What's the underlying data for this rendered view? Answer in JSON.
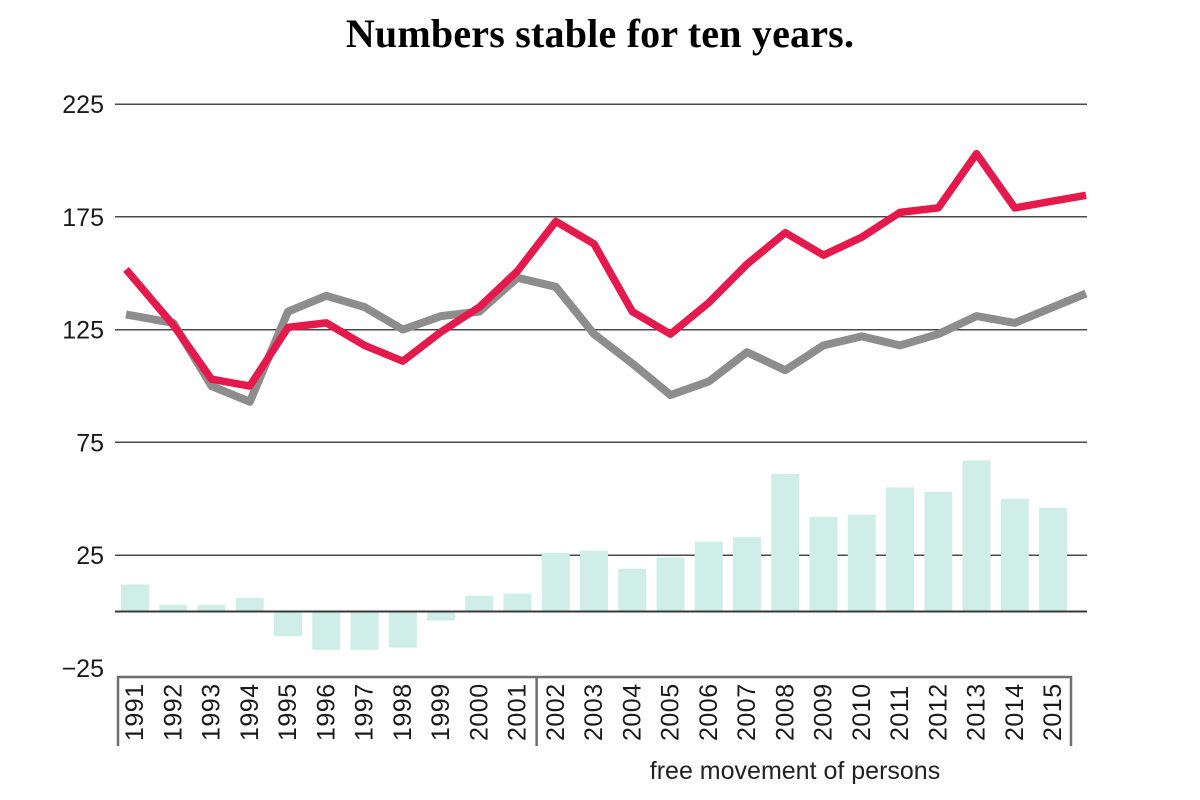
{
  "title": "Numbers stable for ten years.",
  "chart_data": {
    "type": "combo",
    "title": "Numbers stable for ten years.",
    "x": [
      1991,
      1992,
      1993,
      1994,
      1995,
      1996,
      1997,
      1998,
      1999,
      2000,
      2001,
      2002,
      2003,
      2004,
      2005,
      2006,
      2007,
      2008,
      2009,
      2010,
      2011,
      2012,
      2013,
      2014,
      2015
    ],
    "series": [
      {
        "name": "red-line",
        "type": "line",
        "color": "#e6194c",
        "values": [
          147,
          127,
          103,
          100,
          126,
          128,
          118,
          111,
          124,
          135,
          151,
          173,
          163,
          133,
          123,
          137,
          154,
          168,
          158,
          166,
          177,
          179,
          203,
          179,
          182
        ]
      },
      {
        "name": "gray-line",
        "type": "line",
        "color": "#8d8d8d",
        "values": [
          131,
          128,
          100,
          93,
          133,
          140,
          135,
          125,
          131,
          133,
          148,
          144,
          123,
          110,
          96,
          102,
          115,
          107,
          118,
          122,
          118,
          123,
          131,
          128,
          135
        ]
      },
      {
        "name": "bars",
        "type": "bar",
        "color": "#cfeee8",
        "values": [
          12,
          3,
          3,
          6,
          -11,
          -17,
          -17,
          -16,
          -4,
          7,
          8,
          26,
          27,
          19,
          24,
          31,
          33,
          61,
          42,
          43,
          55,
          53,
          67,
          50,
          46
        ]
      }
    ],
    "yticks": [
      {
        "label": "225",
        "value": 225,
        "line": true
      },
      {
        "label": "175",
        "value": 175,
        "line": true
      },
      {
        "label": "125",
        "value": 125,
        "line": true
      },
      {
        "label": "75",
        "value": 75,
        "line": true
      },
      {
        "label": "25",
        "value": 25,
        "line": true
      },
      {
        "label": "−25",
        "value": -25,
        "line": false
      }
    ],
    "ylim": [
      -60,
      228
    ],
    "grid": true,
    "legend": "none",
    "bracket": {
      "label": "free movement of persons",
      "range_start": 2002,
      "range_end": 2015
    }
  }
}
